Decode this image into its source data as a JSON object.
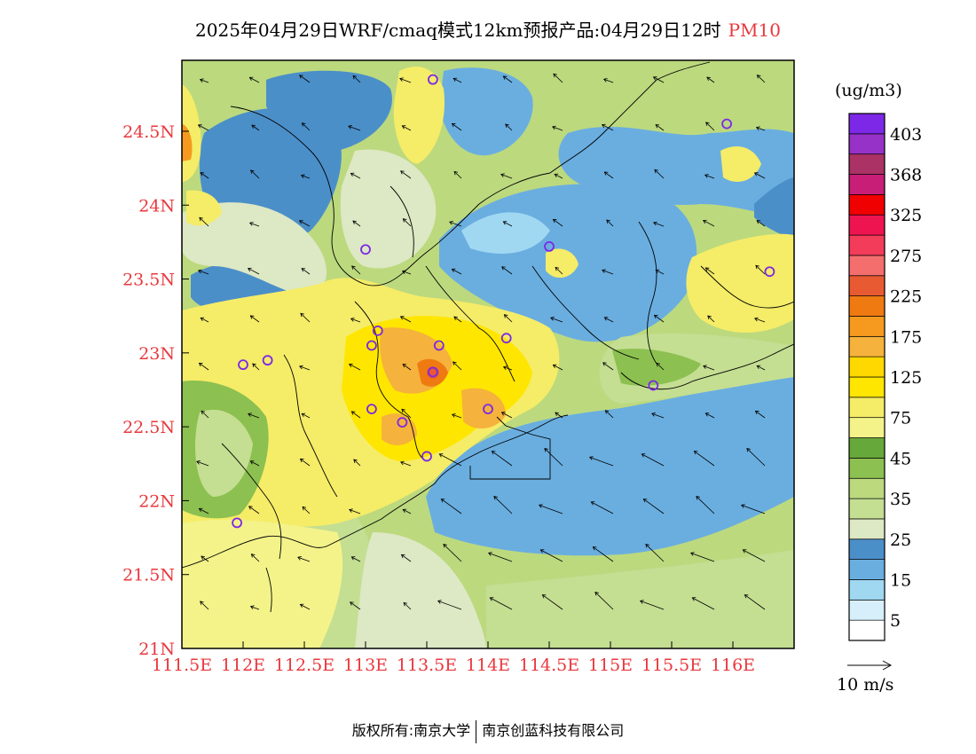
{
  "title": {
    "main": "2025年04月29日WRF/cmaq模式12km预报产品:04月29日12时",
    "pollutant": "PM10"
  },
  "axes": {
    "lon_ticks": [
      "111.5E",
      "112E",
      "112.5E",
      "113E",
      "113.5E",
      "114E",
      "114.5E",
      "115E",
      "115.5E",
      "116E"
    ],
    "lat_ticks": [
      "24.5N",
      "24N",
      "23.5N",
      "23N",
      "22.5N",
      "22N",
      "21.5N",
      "21N"
    ],
    "lon_values": [
      111.5,
      112,
      112.5,
      113,
      113.5,
      114,
      114.5,
      115,
      115.5,
      116
    ],
    "lat_values": [
      24.5,
      24,
      23.5,
      23,
      22.5,
      22,
      21.5,
      21
    ],
    "lon_range": [
      111.5,
      116.5
    ],
    "lat_range": [
      21,
      24.98
    ]
  },
  "colorbar": {
    "unit": "(ug/m3)",
    "colors": [
      "#ffffff",
      "#d7effa",
      "#a0d8f2",
      "#6aaee0",
      "#4b8fc9",
      "#dde8c4",
      "#c4de92",
      "#bcd97e",
      "#8cc050",
      "#67a83a",
      "#f3f38a",
      "#f5ec68",
      "#ffe600",
      "#ffd800",
      "#f5b23c",
      "#f59a1e",
      "#f07a12",
      "#e85a32",
      "#f56e6e",
      "#f23c5a",
      "#ee1450",
      "#f00000",
      "#c81e78",
      "#aa3264",
      "#9632c8",
      "#7c28e6"
    ],
    "labels": [
      {
        "text": "5",
        "level": 1
      },
      {
        "text": "15",
        "level": 3
      },
      {
        "text": "25",
        "level": 5
      },
      {
        "text": "35",
        "level": 7
      },
      {
        "text": "45",
        "level": 9
      },
      {
        "text": "75",
        "level": 11
      },
      {
        "text": "125",
        "level": 13
      },
      {
        "text": "175",
        "level": 15
      },
      {
        "text": "225",
        "level": 17
      },
      {
        "text": "275",
        "level": 19
      },
      {
        "text": "325",
        "level": 21
      },
      {
        "text": "368",
        "level": 23
      },
      {
        "text": "403",
        "level": 25
      }
    ],
    "wind_scale": "10 m/s"
  },
  "colors": {
    "tick_label": "#e8383d",
    "station_marker": "#7c28e6",
    "frame": "#000000"
  },
  "stations": [
    {
      "lon": 113.55,
      "lat": 24.85
    },
    {
      "lon": 115.95,
      "lat": 24.55
    },
    {
      "lon": 113.0,
      "lat": 23.7
    },
    {
      "lon": 114.5,
      "lat": 23.72
    },
    {
      "lon": 116.3,
      "lat": 23.55
    },
    {
      "lon": 112.2,
      "lat": 22.95
    },
    {
      "lon": 112.0,
      "lat": 22.92
    },
    {
      "lon": 113.1,
      "lat": 23.15
    },
    {
      "lon": 113.05,
      "lat": 23.05
    },
    {
      "lon": 113.6,
      "lat": 23.05
    },
    {
      "lon": 114.15,
      "lat": 23.1
    },
    {
      "lon": 113.55,
      "lat": 22.87
    },
    {
      "lon": 113.05,
      "lat": 22.62
    },
    {
      "lon": 113.3,
      "lat": 22.53
    },
    {
      "lon": 114.0,
      "lat": 22.62
    },
    {
      "lon": 113.5,
      "lat": 22.3
    },
    {
      "lon": 115.35,
      "lat": 22.78
    },
    {
      "lon": 111.95,
      "lat": 21.85
    }
  ],
  "footer": {
    "copyright": "版权所有:南京大学",
    "company": "南京创蓝科技有限公司"
  }
}
